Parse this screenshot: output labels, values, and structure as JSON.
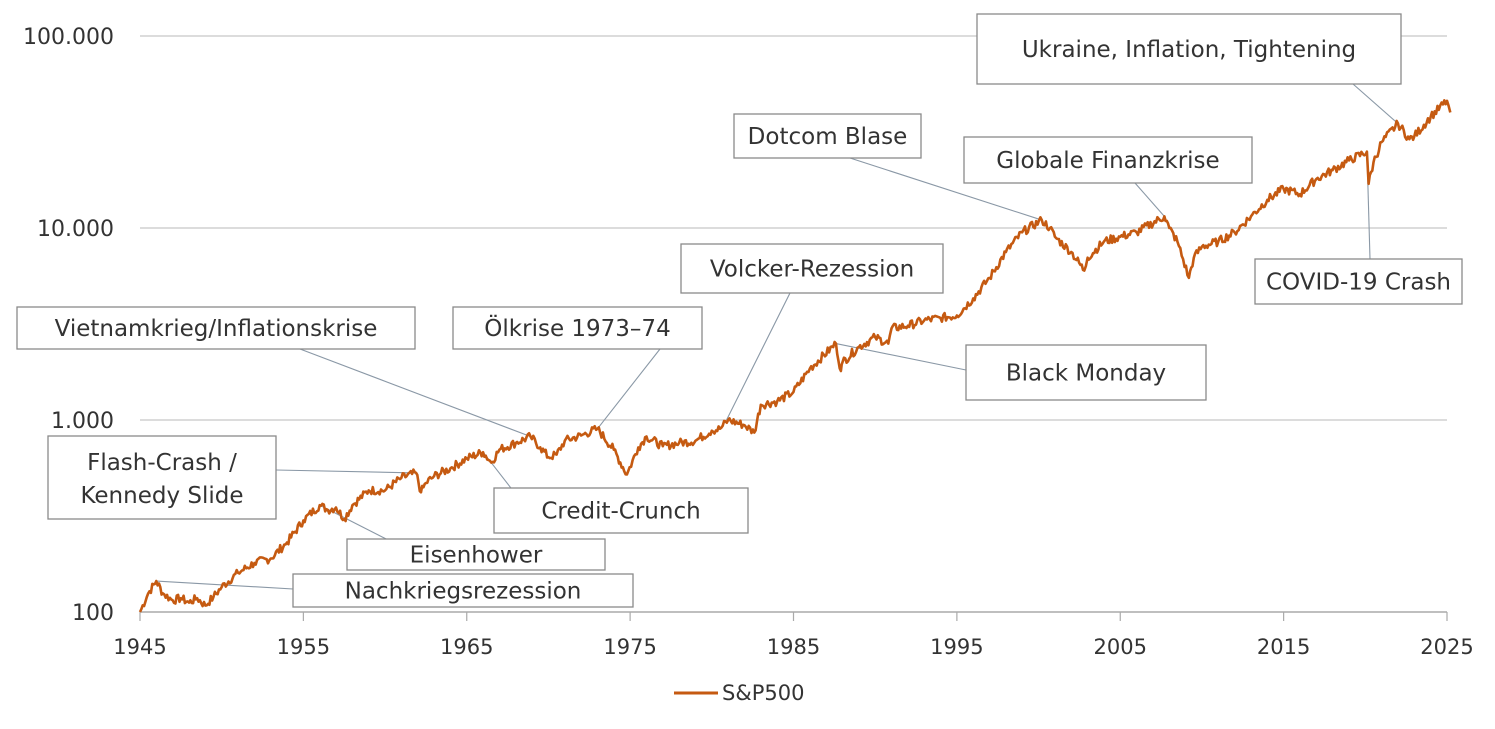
{
  "chart_data": {
    "type": "line",
    "y_scale": "log",
    "ylim": [
      100,
      100000
    ],
    "xlim": [
      1945,
      2025
    ],
    "y_ticks": [
      {
        "value": 100,
        "label": "100"
      },
      {
        "value": 1000,
        "label": "1.000"
      },
      {
        "value": 10000,
        "label": "10.000"
      },
      {
        "value": 100000,
        "label": "100.000"
      }
    ],
    "x_ticks": [
      1945,
      1955,
      1965,
      1975,
      1985,
      1995,
      2005,
      2015,
      2025
    ],
    "grid": "horizontal",
    "legend_position": "bottom-center",
    "line_color": "#c55a11",
    "series": [
      {
        "name": "S&P500",
        "x": [
          1945,
          1945.5,
          1946,
          1946.4,
          1947,
          1947.5,
          1948,
          1948.5,
          1949,
          1949.5,
          1950,
          1951,
          1952,
          1953,
          1954,
          1955,
          1956,
          1956.5,
          1957,
          1957.5,
          1958,
          1959,
          1960,
          1961,
          1961.9,
          1962.2,
          1962.5,
          1963,
          1964,
          1965,
          1966,
          1966.5,
          1967,
          1968,
          1968.9,
          1969.5,
          1970,
          1970.5,
          1971,
          1972,
          1973,
          1974,
          1974.8,
          1975.5,
          1976,
          1977,
          1978,
          1979,
          1980,
          1980.5,
          1981,
          1982,
          1982.6,
          1983,
          1984,
          1985,
          1986,
          1987.6,
          1987.9,
          1988,
          1989,
          1990,
          1990.8,
          1991,
          1992,
          1993,
          1994,
          1995,
          1996,
          1997,
          1998,
          1999,
          2000.2,
          2000.7,
          2001,
          2002,
          2002.8,
          2003,
          2004,
          2005,
          2006,
          2007.7,
          2008,
          2008.5,
          2009.2,
          2009.5,
          2010,
          2011,
          2012,
          2013,
          2014,
          2015,
          2016,
          2017,
          2018,
          2019,
          2020.1,
          2020.2,
          2020.5,
          2021,
          2022.0,
          2022.7,
          2023,
          2024,
          2025,
          2025.2
        ],
        "values": [
          100,
          125,
          145,
          125,
          115,
          118,
          112,
          118,
          108,
          120,
          135,
          160,
          180,
          190,
          230,
          300,
          360,
          340,
          350,
          305,
          360,
          430,
          430,
          500,
          530,
          420,
          470,
          510,
          560,
          630,
          680,
          600,
          700,
          760,
          820,
          720,
          640,
          660,
          780,
          830,
          900,
          700,
          520,
          720,
          820,
          730,
          760,
          780,
          880,
          900,
          1000,
          940,
          860,
          1200,
          1250,
          1400,
          1850,
          2500,
          1800,
          2000,
          2400,
          2700,
          2500,
          3000,
          3100,
          3300,
          3400,
          3500,
          4300,
          5500,
          7500,
          9500,
          11000,
          10000,
          9000,
          7500,
          6000,
          7000,
          8500,
          9000,
          9500,
          11500,
          10000,
          8500,
          5500,
          7000,
          8000,
          8500,
          9500,
          11500,
          14000,
          16000,
          15000,
          18000,
          20000,
          22500,
          25000,
          17000,
          22000,
          28000,
          35000,
          29000,
          30000,
          38000,
          46000,
          40000
        ]
      }
    ],
    "annotations": [
      {
        "text": "Ukraine, Inflation, Tightening",
        "x": 2022.0,
        "y": 35000
      },
      {
        "text": "Dotcom Blase",
        "x": 2000.2,
        "y": 11000
      },
      {
        "text": "Globale Finanzkrise",
        "x": 2007.7,
        "y": 11500
      },
      {
        "text": "COVID-19 Crash",
        "x": 2020.1,
        "y": 25000
      },
      {
        "text": "Volcker-Rezession",
        "x": 1980.9,
        "y": 1000
      },
      {
        "text": "Vietnamkrieg/Inflationskrise",
        "x": 1968.9,
        "y": 820
      },
      {
        "text": "Ölkrise 1973–74",
        "x": 1973.0,
        "y": 900
      },
      {
        "text": "Black Monday",
        "x": 1987.6,
        "y": 2500
      },
      {
        "text": "Flash-Crash /",
        "text2": "Kennedy Slide",
        "x": 1961.9,
        "y": 530
      },
      {
        "text": "Credit-Crunch",
        "x": 1966.0,
        "y": 680
      },
      {
        "text": "Eisenhower",
        "x": 1956.0,
        "y": 360
      },
      {
        "text": "Nachkriegsrezession",
        "x": 1946.0,
        "y": 145
      }
    ]
  }
}
